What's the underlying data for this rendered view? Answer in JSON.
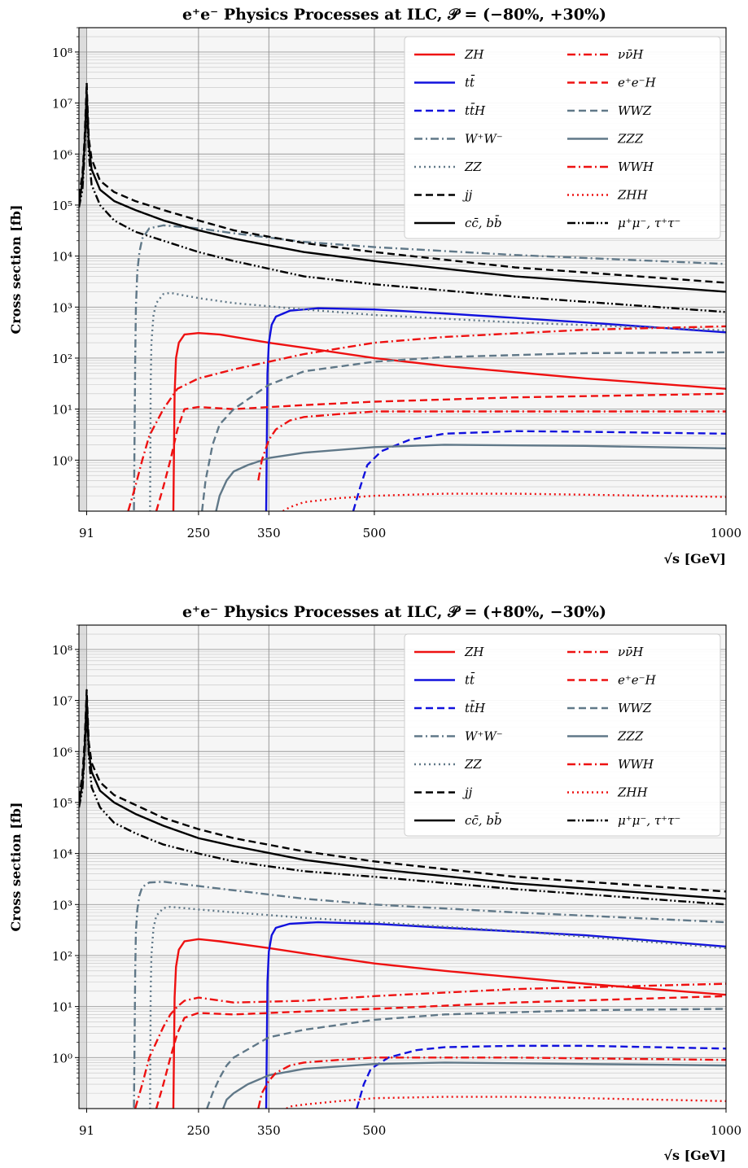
{
  "chart_data": [
    {
      "type": "line",
      "title": "e⁺e⁻ Physics Processes at ILC, 𝒫 = (−80%, +30%)",
      "xlabel": "√s [GeV]",
      "ylabel": "Cross section [fb]",
      "xlim": [
        80,
        1000
      ],
      "ylim": [
        0.1,
        300000000
      ],
      "yscale": "log",
      "xticks": [
        "91",
        "250",
        "350",
        "500",
        "1000"
      ],
      "xtick_values": [
        91,
        250,
        350,
        500,
        1000
      ],
      "yticks": [
        "10⁰",
        "10¹",
        "10²",
        "10³",
        "10⁴",
        "10⁵",
        "10⁶",
        "10⁷",
        "10⁸"
      ],
      "grid": true,
      "shaded_region": [
        80,
        91
      ],
      "legend_position": "top-right",
      "series": [
        {
          "name": "ZH",
          "color": "#ee1111",
          "style": "solid",
          "x": [
            214,
            216,
            218,
            222,
            230,
            250,
            280,
            350,
            400,
            500,
            600,
            800,
            1000
          ],
          "y": [
            0.05,
            20,
            100,
            200,
            290,
            310,
            290,
            200,
            160,
            100,
            70,
            40,
            25
          ]
        },
        {
          "name": "tt̄",
          "color": "#1111dd",
          "style": "solid",
          "x": [
            346,
            348,
            350,
            354,
            360,
            380,
            420,
            500,
            600,
            800,
            1000
          ],
          "y": [
            0.05,
            50,
            200,
            450,
            650,
            850,
            950,
            900,
            750,
            500,
            320
          ]
        },
        {
          "name": "tt̄H",
          "color": "#1111dd",
          "style": "dashed",
          "x": [
            470,
            480,
            490,
            510,
            550,
            600,
            700,
            800,
            1000
          ],
          "y": [
            0.1,
            0.3,
            0.8,
            1.5,
            2.5,
            3.3,
            3.7,
            3.6,
            3.3
          ]
        },
        {
          "name": "W⁺W⁻",
          "color": "#607888",
          "style": "dashdot",
          "x": [
            158,
            160,
            161,
            163,
            166,
            170,
            180,
            200,
            250,
            300,
            400,
            500,
            700,
            1000
          ],
          "y": [
            0.05,
            100,
            1000,
            5000,
            12000,
            22000,
            35000,
            40000,
            35000,
            28000,
            19000,
            15000,
            10500,
            7000
          ]
        },
        {
          "name": "ZZ",
          "color": "#607888",
          "style": "dotted",
          "x": [
            181,
            182,
            183,
            186,
            190,
            200,
            210,
            250,
            300,
            400,
            500,
            700,
            1000
          ],
          "y": [
            0.05,
            30,
            200,
            700,
            1200,
            1800,
            1900,
            1500,
            1200,
            900,
            700,
            500,
            350
          ]
        },
        {
          "name": "jj",
          "color": "#000000",
          "style": "dashed",
          "x": [
            80,
            85,
            88,
            90,
            91,
            92,
            94,
            98,
            110,
            130,
            160,
            200,
            250,
            300,
            400,
            500,
            700,
            1000
          ],
          "y": [
            150000,
            400000,
            2000000,
            10000000,
            25000000,
            10000000,
            2000000,
            800000,
            300000,
            180000,
            120000,
            80000,
            50000,
            32000,
            18000,
            12000,
            6000,
            3000
          ]
        },
        {
          "name": "cc̄, bb̄",
          "color": "#000000",
          "style": "solid",
          "x": [
            80,
            85,
            88,
            90,
            91,
            92,
            94,
            98,
            110,
            130,
            160,
            200,
            250,
            300,
            400,
            500,
            700,
            1000
          ],
          "y": [
            100000,
            300000,
            1500000,
            7000000,
            17000000,
            7000000,
            1500000,
            500000,
            200000,
            120000,
            80000,
            50000,
            32000,
            22000,
            12000,
            8000,
            4000,
            2000
          ]
        },
        {
          "name": "νν̄H",
          "color": "#ee1111",
          "style": "dashdot",
          "x": [
            150,
            160,
            170,
            180,
            200,
            220,
            250,
            300,
            400,
            500,
            600,
            800,
            1000
          ],
          "y": [
            0.1,
            0.3,
            1,
            3,
            10,
            25,
            40,
            60,
            120,
            200,
            260,
            360,
            420
          ]
        },
        {
          "name": "e⁺e⁻H",
          "color": "#ee1111",
          "style": "dashed",
          "x": [
            190,
            200,
            210,
            220,
            230,
            250,
            300,
            400,
            500,
            700,
            1000
          ],
          "y": [
            0.1,
            0.3,
            1,
            4,
            10,
            11,
            10,
            12,
            14,
            17,
            20
          ]
        },
        {
          "name": "WWZ",
          "color": "#607888",
          "style": "dashed",
          "x": [
            255,
            260,
            270,
            280,
            300,
            350,
            400,
            500,
            600,
            800,
            1000
          ],
          "y": [
            0.1,
            0.4,
            2,
            5,
            10,
            30,
            55,
            85,
            105,
            125,
            130
          ]
        },
        {
          "name": "ZZZ",
          "color": "#607888",
          "style": "solid",
          "x": [
            275,
            280,
            290,
            300,
            320,
            350,
            400,
            500,
            600,
            800,
            1000
          ],
          "y": [
            0.1,
            0.2,
            0.4,
            0.6,
            0.8,
            1.1,
            1.4,
            1.8,
            2,
            1.9,
            1.7
          ]
        },
        {
          "name": "WWH",
          "color": "#ee1111",
          "style": "dashdot",
          "x": [
            335,
            340,
            350,
            360,
            380,
            400,
            450,
            500,
            700,
            1000
          ],
          "y": [
            0.4,
            1,
            2.5,
            4,
            6,
            7,
            8,
            9,
            9,
            9
          ]
        },
        {
          "name": "ZHH",
          "color": "#ee1111",
          "style": "dotted",
          "x": [
            370,
            380,
            400,
            450,
            500,
            600,
            700,
            800,
            1000
          ],
          "y": [
            0.1,
            0.12,
            0.15,
            0.18,
            0.2,
            0.22,
            0.22,
            0.21,
            0.19
          ]
        },
        {
          "name": "μ⁺μ⁻, τ⁺τ⁻",
          "color": "#000000",
          "style": "dashdotdot",
          "x": [
            80,
            85,
            88,
            90,
            91,
            92,
            94,
            98,
            110,
            130,
            160,
            200,
            250,
            300,
            400,
            500,
            700,
            1000
          ],
          "y": [
            90000,
            200000,
            1000000,
            5000000,
            12000000,
            5000000,
            1000000,
            250000,
            100000,
            50000,
            30000,
            20000,
            12000,
            8000,
            4000,
            2800,
            1600,
            800
          ]
        }
      ]
    },
    {
      "type": "line",
      "title": "e⁺e⁻ Physics Processes at ILC, 𝒫 = (+80%, −30%)",
      "xlabel": "√s [GeV]",
      "ylabel": "Cross section [fb]",
      "xlim": [
        80,
        1000
      ],
      "ylim": [
        0.1,
        300000000
      ],
      "yscale": "log",
      "xticks": [
        "91",
        "250",
        "350",
        "500",
        "1000"
      ],
      "xtick_values": [
        91,
        250,
        350,
        500,
        1000
      ],
      "yticks": [
        "10⁰",
        "10¹",
        "10²",
        "10³",
        "10⁴",
        "10⁵",
        "10⁶",
        "10⁷",
        "10⁸"
      ],
      "grid": true,
      "shaded_region": [
        80,
        91
      ],
      "legend_position": "top-right",
      "series": [
        {
          "name": "ZH",
          "color": "#ee1111",
          "style": "solid",
          "x": [
            214,
            216,
            218,
            222,
            230,
            250,
            280,
            350,
            400,
            500,
            600,
            800,
            1000
          ],
          "y": [
            0.05,
            15,
            60,
            130,
            190,
            210,
            190,
            140,
            110,
            70,
            50,
            28,
            17
          ]
        },
        {
          "name": "tt̄",
          "color": "#1111dd",
          "style": "solid",
          "x": [
            346,
            348,
            350,
            354,
            360,
            380,
            420,
            500,
            600,
            800,
            1000
          ],
          "y": [
            0.05,
            30,
            120,
            250,
            350,
            420,
            450,
            420,
            350,
            250,
            150
          ]
        },
        {
          "name": "tt̄H",
          "color": "#1111dd",
          "style": "dashed",
          "x": [
            475,
            485,
            495,
            520,
            560,
            600,
            700,
            800,
            1000
          ],
          "y": [
            0.1,
            0.3,
            0.6,
            1,
            1.4,
            1.6,
            1.7,
            1.7,
            1.5
          ]
        },
        {
          "name": "W⁺W⁻",
          "color": "#607888",
          "style": "dashdot",
          "x": [
            158,
            160,
            161,
            163,
            166,
            170,
            180,
            200,
            250,
            300,
            400,
            500,
            700,
            1000
          ],
          "y": [
            0.05,
            50,
            300,
            800,
            1500,
            2200,
            2700,
            2800,
            2300,
            1900,
            1300,
            1000,
            700,
            450
          ]
        },
        {
          "name": "ZZ",
          "color": "#607888",
          "style": "dotted",
          "x": [
            181,
            182,
            183,
            186,
            190,
            200,
            210,
            250,
            300,
            400,
            500,
            700,
            1000
          ],
          "y": [
            0.05,
            20,
            100,
            350,
            600,
            850,
            900,
            800,
            700,
            550,
            450,
            300,
            140
          ]
        },
        {
          "name": "jj",
          "color": "#000000",
          "style": "dashed",
          "x": [
            80,
            85,
            88,
            90,
            91,
            92,
            94,
            98,
            110,
            130,
            160,
            200,
            250,
            300,
            400,
            500,
            700,
            1000
          ],
          "y": [
            120000,
            350000,
            1500000,
            7000000,
            16000000,
            7000000,
            1500000,
            600000,
            250000,
            140000,
            90000,
            50000,
            30000,
            20000,
            11000,
            7000,
            3500,
            1800
          ]
        },
        {
          "name": "cc̄, bb̄",
          "color": "#000000",
          "style": "solid",
          "x": [
            80,
            85,
            88,
            90,
            91,
            92,
            94,
            98,
            110,
            130,
            160,
            200,
            250,
            300,
            400,
            500,
            700,
            1000
          ],
          "y": [
            90000,
            250000,
            1000000,
            5000000,
            12000000,
            5000000,
            1000000,
            400000,
            170000,
            100000,
            60000,
            35000,
            20000,
            14000,
            7500,
            5000,
            2600,
            1300
          ]
        },
        {
          "name": "νν̄H",
          "color": "#ee1111",
          "style": "dashdot",
          "x": [
            160,
            170,
            180,
            190,
            200,
            210,
            220,
            230,
            250,
            300,
            400,
            500,
            700,
            1000
          ],
          "y": [
            0.1,
            0.3,
            1,
            2,
            4,
            7,
            10,
            13,
            15,
            12,
            13,
            16,
            22,
            28
          ]
        },
        {
          "name": "e⁺e⁻H",
          "color": "#ee1111",
          "style": "dashed",
          "x": [
            190,
            200,
            210,
            220,
            230,
            250,
            300,
            400,
            500,
            700,
            1000
          ],
          "y": [
            0.1,
            0.3,
            1,
            3,
            6,
            7.5,
            7,
            8,
            9,
            12,
            16
          ]
        },
        {
          "name": "WWZ",
          "color": "#607888",
          "style": "dashed",
          "x": [
            262,
            270,
            280,
            290,
            300,
            350,
            400,
            500,
            600,
            800,
            1000
          ],
          "y": [
            0.1,
            0.2,
            0.4,
            0.7,
            1,
            2.5,
            3.5,
            5.5,
            7,
            8.5,
            9
          ]
        },
        {
          "name": "ZZZ",
          "color": "#607888",
          "style": "solid",
          "x": [
            285,
            290,
            300,
            320,
            350,
            400,
            500,
            600,
            800,
            1000
          ],
          "y": [
            0.1,
            0.15,
            0.2,
            0.3,
            0.45,
            0.6,
            0.75,
            0.8,
            0.75,
            0.7
          ]
        },
        {
          "name": "WWH",
          "color": "#ee1111",
          "style": "dashdot",
          "x": [
            335,
            340,
            350,
            360,
            380,
            400,
            450,
            500,
            700,
            1000
          ],
          "y": [
            0.1,
            0.2,
            0.35,
            0.5,
            0.7,
            0.8,
            0.9,
            1,
            1,
            0.9
          ]
        },
        {
          "name": "ZHH",
          "color": "#ee1111",
          "style": "dotted",
          "x": [
            375,
            380,
            400,
            450,
            500,
            600,
            700,
            800,
            1000
          ],
          "y": [
            0.1,
            0.11,
            0.12,
            0.14,
            0.16,
            0.17,
            0.17,
            0.16,
            0.14
          ]
        },
        {
          "name": "μ⁺μ⁻, τ⁺τ⁻",
          "color": "#000000",
          "style": "dashdotdot",
          "x": [
            80,
            85,
            88,
            90,
            91,
            92,
            94,
            98,
            110,
            130,
            160,
            200,
            250,
            300,
            400,
            500,
            700,
            1000
          ],
          "y": [
            80000,
            180000,
            800000,
            3500000,
            9000000,
            3500000,
            800000,
            200000,
            80000,
            40000,
            25000,
            15000,
            10000,
            7000,
            4500,
            3500,
            2000,
            1000
          ]
        }
      ]
    }
  ]
}
